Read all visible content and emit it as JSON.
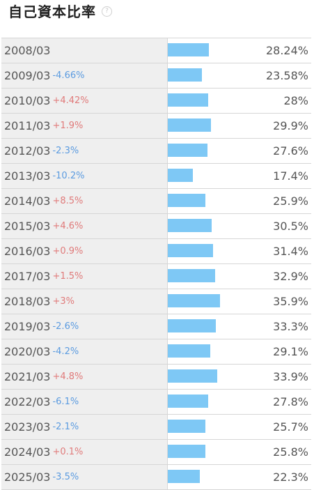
{
  "title": "自己資本比率",
  "help_icon": {
    "symbol": "?",
    "name": "help-icon"
  },
  "colors": {
    "bar": "#7ec8f5",
    "negative": "#5b9be0",
    "positive": "#e07a7a"
  },
  "rows": [
    {
      "date": "2008/03",
      "change": "",
      "value": "28.24%",
      "ratio": 28.24
    },
    {
      "date": "2009/03",
      "change": "-4.66%",
      "value": "23.58%",
      "ratio": 23.58
    },
    {
      "date": "2010/03",
      "change": "+4.42%",
      "value": "28%",
      "ratio": 28.0
    },
    {
      "date": "2011/03",
      "change": "+1.9%",
      "value": "29.9%",
      "ratio": 29.9
    },
    {
      "date": "2012/03",
      "change": "-2.3%",
      "value": "27.6%",
      "ratio": 27.6
    },
    {
      "date": "2013/03",
      "change": "-10.2%",
      "value": "17.4%",
      "ratio": 17.4
    },
    {
      "date": "2014/03",
      "change": "+8.5%",
      "value": "25.9%",
      "ratio": 25.9
    },
    {
      "date": "2015/03",
      "change": "+4.6%",
      "value": "30.5%",
      "ratio": 30.5
    },
    {
      "date": "2016/03",
      "change": "+0.9%",
      "value": "31.4%",
      "ratio": 31.4
    },
    {
      "date": "2017/03",
      "change": "+1.5%",
      "value": "32.9%",
      "ratio": 32.9
    },
    {
      "date": "2018/03",
      "change": "+3%",
      "value": "35.9%",
      "ratio": 35.9
    },
    {
      "date": "2019/03",
      "change": "-2.6%",
      "value": "33.3%",
      "ratio": 33.3
    },
    {
      "date": "2020/03",
      "change": "-4.2%",
      "value": "29.1%",
      "ratio": 29.1
    },
    {
      "date": "2021/03",
      "change": "+4.8%",
      "value": "33.9%",
      "ratio": 33.9
    },
    {
      "date": "2022/03",
      "change": "-6.1%",
      "value": "27.8%",
      "ratio": 27.8
    },
    {
      "date": "2023/03",
      "change": "-2.1%",
      "value": "25.7%",
      "ratio": 25.7
    },
    {
      "date": "2024/03",
      "change": "+0.1%",
      "value": "25.8%",
      "ratio": 25.8
    },
    {
      "date": "2025/03",
      "change": "-3.5%",
      "value": "22.3%",
      "ratio": 22.3
    }
  ]
}
